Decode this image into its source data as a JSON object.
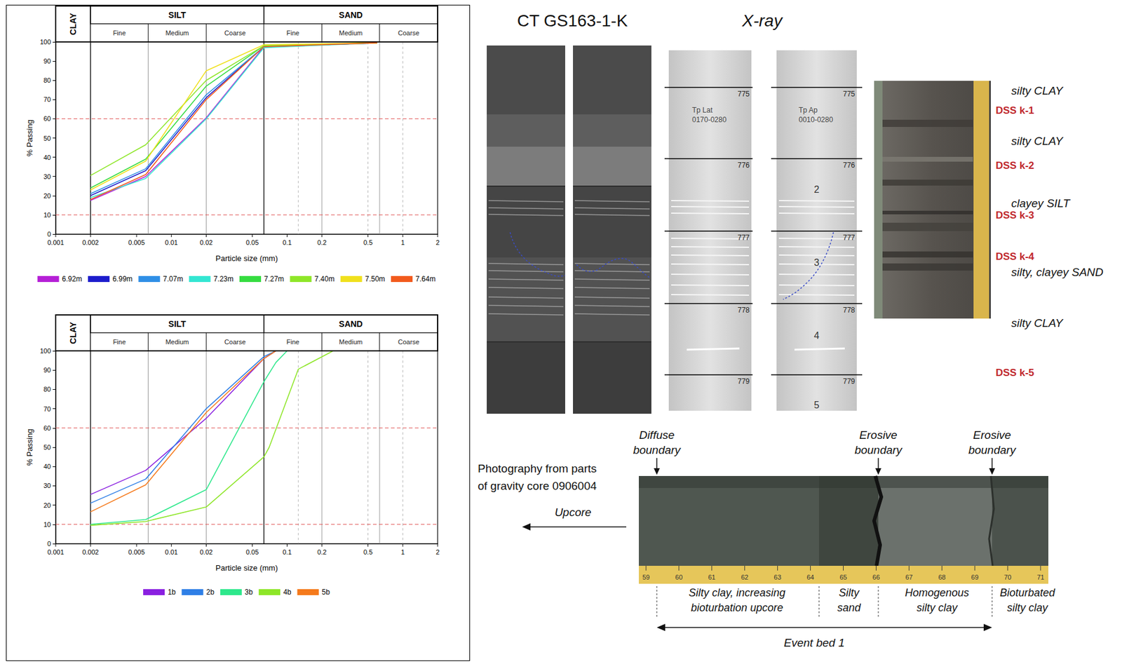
{
  "chart_data": [
    {
      "type": "line",
      "log": "x",
      "grid": false,
      "legend": "bottom",
      "xlabel": "Particle size (mm)",
      "ylabel": "% Passing",
      "xlim": [
        0.001,
        2
      ],
      "xticks": [
        0.001,
        0.002,
        0.005,
        0.01,
        0.02,
        0.05,
        0.1,
        0.2,
        0.5,
        1,
        2
      ],
      "ylim": [
        0,
        100
      ],
      "yticks": [
        0,
        10,
        20,
        30,
        40,
        50,
        60,
        70,
        80,
        90,
        100
      ],
      "size_classes": [
        {
          "label": "CLAY",
          "from": 0.001,
          "to": 0.002,
          "subclasses": []
        },
        {
          "label": "SILT",
          "from": 0.002,
          "to": 0.063,
          "subclasses": [
            {
              "label": "Fine",
              "from": 0.002,
              "to": 0.0063
            },
            {
              "label": "Medium",
              "from": 0.0063,
              "to": 0.02
            },
            {
              "label": "Coarse",
              "from": 0.02,
              "to": 0.063
            }
          ]
        },
        {
          "label": "SAND",
          "from": 0.063,
          "to": 2,
          "subclasses": [
            {
              "label": "Fine",
              "from": 0.063,
              "to": 0.2
            },
            {
              "label": "Medium",
              "from": 0.2,
              "to": 0.63
            },
            {
              "label": "Coarse",
              "from": 0.63,
              "to": 2
            }
          ]
        }
      ],
      "minor_lines": [
        0.125,
        0.5,
        1
      ],
      "reference_lines": [
        10,
        60
      ],
      "series": [
        {
          "name": "6.92m",
          "color": "#b51fd6",
          "x": [
            0.002,
            0.006,
            0.02,
            0.063,
            0.6
          ],
          "values": [
            17.5,
            30,
            60.5,
            97.5,
            99.5
          ]
        },
        {
          "name": "6.99m",
          "color": "#1c1ccc",
          "x": [
            0.002,
            0.006,
            0.02,
            0.063,
            0.6
          ],
          "values": [
            20,
            33,
            71,
            97.5,
            99.5
          ]
        },
        {
          "name": "7.07m",
          "color": "#2f8fe6",
          "x": [
            0.002,
            0.006,
            0.02,
            0.063,
            0.6
          ],
          "values": [
            21,
            34,
            72.5,
            97.5,
            99.5
          ]
        },
        {
          "name": "7.23m",
          "color": "#33e6d2",
          "x": [
            0.002,
            0.006,
            0.02,
            0.063,
            0.6
          ],
          "values": [
            19,
            29,
            60,
            97,
            99.5
          ]
        },
        {
          "name": "7.27m",
          "color": "#35dc40",
          "x": [
            0.002,
            0.006,
            0.02,
            0.063,
            0.6
          ],
          "values": [
            24,
            39,
            77,
            98,
            99.5
          ]
        },
        {
          "name": "7.40m",
          "color": "#8ee628",
          "x": [
            0.002,
            0.006,
            0.02,
            0.063,
            0.6
          ],
          "values": [
            30.5,
            46.5,
            80,
            98,
            99.5
          ]
        },
        {
          "name": "7.50m",
          "color": "#f0e01c",
          "x": [
            0.002,
            0.006,
            0.02,
            0.063,
            0.6
          ],
          "values": [
            23,
            38,
            85,
            98.5,
            99.5
          ]
        },
        {
          "name": "7.64m",
          "color": "#f25a1c",
          "x": [
            0.002,
            0.006,
            0.02,
            0.063,
            0.6
          ],
          "values": [
            18,
            31,
            70,
            97.5,
            99.5
          ]
        }
      ]
    },
    {
      "type": "line",
      "log": "x",
      "grid": false,
      "legend": "bottom",
      "xlabel": "Particle size (mm)",
      "ylabel": "% Passing",
      "xlim": [
        0.001,
        2
      ],
      "xticks": [
        0.001,
        0.002,
        0.005,
        0.01,
        0.02,
        0.05,
        0.1,
        0.2,
        0.5,
        1,
        2
      ],
      "ylim": [
        0,
        100
      ],
      "yticks": [
        0,
        10,
        20,
        30,
        40,
        50,
        60,
        70,
        80,
        90,
        100
      ],
      "size_classes": [
        {
          "label": "CLAY",
          "from": 0.001,
          "to": 0.002,
          "subclasses": []
        },
        {
          "label": "SILT",
          "from": 0.002,
          "to": 0.063,
          "subclasses": [
            {
              "label": "Fine",
              "from": 0.002,
              "to": 0.0063
            },
            {
              "label": "Medium",
              "from": 0.0063,
              "to": 0.02
            },
            {
              "label": "Coarse",
              "from": 0.02,
              "to": 0.063
            }
          ]
        },
        {
          "label": "SAND",
          "from": 0.063,
          "to": 2,
          "subclasses": [
            {
              "label": "Fine",
              "from": 0.063,
              "to": 0.2
            },
            {
              "label": "Medium",
              "from": 0.2,
              "to": 0.63
            },
            {
              "label": "Coarse",
              "from": 0.63,
              "to": 2
            }
          ]
        }
      ],
      "minor_lines": [
        0.125,
        0.5,
        1
      ],
      "reference_lines": [
        10,
        60
      ],
      "series": [
        {
          "name": "1b",
          "color": "#8a20e0",
          "x": [
            0.002,
            0.006,
            0.02,
            0.063,
            0.08,
            0.25
          ],
          "values": [
            25.5,
            38,
            65,
            96,
            100,
            100
          ]
        },
        {
          "name": "2b",
          "color": "#2f7fe6",
          "x": [
            0.002,
            0.006,
            0.02,
            0.063,
            0.08,
            0.25
          ],
          "values": [
            21,
            33.5,
            70,
            97,
            100,
            100
          ]
        },
        {
          "name": "3b",
          "color": "#2ee88c",
          "x": [
            0.002,
            0.006,
            0.02,
            0.063,
            0.08,
            0.1,
            0.25
          ],
          "values": [
            10,
            12.5,
            28,
            84,
            94,
            100,
            100
          ]
        },
        {
          "name": "4b",
          "color": "#8ee628",
          "x": [
            0.002,
            0.006,
            0.02,
            0.063,
            0.07,
            0.125,
            0.25
          ],
          "values": [
            9.5,
            11.5,
            19,
            45,
            50,
            90.5,
            100
          ]
        },
        {
          "name": "5b",
          "color": "#f57a1c",
          "x": [
            0.002,
            0.006,
            0.02,
            0.063,
            0.08,
            0.25
          ],
          "values": [
            16.5,
            30.5,
            68,
            96,
            100,
            100
          ]
        }
      ]
    }
  ],
  "core_panel": {
    "ct_title": "CT GS163-1-K",
    "xray_title": "X-ray",
    "xray_depth_marks": [
      "775",
      "776",
      "777",
      "778",
      "779"
    ],
    "xray_tags": [
      [
        "Tp Lat",
        "0170-0280"
      ],
      [
        "Tp Ap",
        "0010-0280"
      ]
    ],
    "xray_section_numbers": [
      "2",
      "3",
      "4",
      "5"
    ],
    "lithology_labels": [
      "silty CLAY",
      "silty CLAY",
      "clayey SILT",
      "silty, clayey SAND",
      "silty CLAY"
    ],
    "sample_labels": [
      "DSS k-1",
      "DSS k-2",
      "DSS k-3",
      "DSS k-4",
      "DSS k-5"
    ],
    "gravity_core_photo": {
      "caption": [
        "Photography from parts",
        "of gravity core 0906004"
      ],
      "direction": "Upcore",
      "boundaries": [
        [
          "Diffuse",
          "boundary"
        ],
        [
          "Erosive",
          "boundary"
        ],
        [
          "Erosive",
          "boundary"
        ]
      ],
      "units": [
        [
          "Silty clay, increasing",
          "bioturbation upcore"
        ],
        [
          "Silty",
          "sand"
        ],
        [
          "Homogenous",
          "silty clay"
        ],
        [
          "Bioturbated",
          "silty clay"
        ]
      ],
      "event": "Event bed 1",
      "ruler_marks": [
        59,
        60,
        61,
        62,
        63,
        64,
        65,
        66,
        67,
        68,
        69,
        70,
        71
      ]
    }
  }
}
